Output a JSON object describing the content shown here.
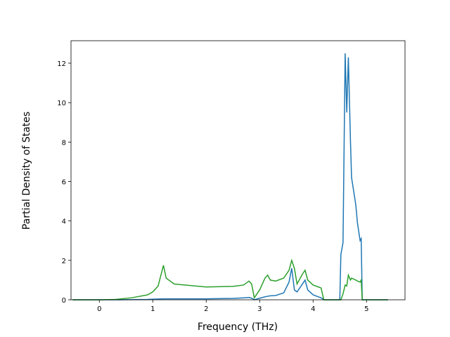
{
  "chart_data": {
    "type": "line",
    "x_label": "Frequency (THz)",
    "y_label": "Partial Density of States",
    "x": [
      -0.5,
      0,
      0.3,
      0.6,
      0.9,
      1.0,
      1.1,
      1.2,
      1.25,
      1.4,
      2.0,
      2.5,
      2.7,
      2.8,
      2.85,
      2.9,
      3.0,
      3.1,
      3.15,
      3.2,
      3.3,
      3.45,
      3.55,
      3.6,
      3.65,
      3.7,
      3.8,
      3.85,
      3.9,
      4.0,
      4.1,
      4.15,
      4.2,
      4.5,
      4.52,
      4.56,
      4.6,
      4.63,
      4.66,
      4.7,
      4.72,
      4.8,
      4.83,
      4.88,
      4.9,
      4.92,
      5.4
    ],
    "series": [
      {
        "color": "#1f77b4",
        "values": [
          0,
          0,
          0,
          0.01,
          0.02,
          0.03,
          0.04,
          0.05,
          0.05,
          0.05,
          0.05,
          0.07,
          0.1,
          0.12,
          0.08,
          0,
          0.08,
          0.15,
          0.18,
          0.2,
          0.22,
          0.35,
          0.9,
          1.6,
          0.5,
          0.4,
          0.8,
          1.0,
          0.5,
          0.25,
          0.15,
          0.1,
          0,
          0,
          2.3,
          2.9,
          12.5,
          9.5,
          12.3,
          8,
          6.2,
          4.8,
          3.9,
          3.0,
          3.1,
          0,
          0
        ]
      },
      {
        "color": "#2ca02c",
        "values": [
          0,
          0,
          0.02,
          0.1,
          0.25,
          0.4,
          0.7,
          1.75,
          1.1,
          0.8,
          0.65,
          0.68,
          0.75,
          0.95,
          0.8,
          0.1,
          0.5,
          1.1,
          1.25,
          1.0,
          0.95,
          1.1,
          1.5,
          2.0,
          1.6,
          0.8,
          1.3,
          1.5,
          1.0,
          0.75,
          0.65,
          0.6,
          0,
          0,
          0,
          0.3,
          0.75,
          0.7,
          1.25,
          1.0,
          1.1,
          1.0,
          0.95,
          0.9,
          1.0,
          0,
          0
        ]
      }
    ],
    "xlim": [
      -0.53,
      5.72
    ],
    "ylim": [
      0,
      13.14
    ],
    "xticks": [
      0,
      1,
      2,
      3,
      4,
      5
    ],
    "yticks": [
      0,
      2,
      4,
      6,
      8,
      10,
      12
    ]
  }
}
